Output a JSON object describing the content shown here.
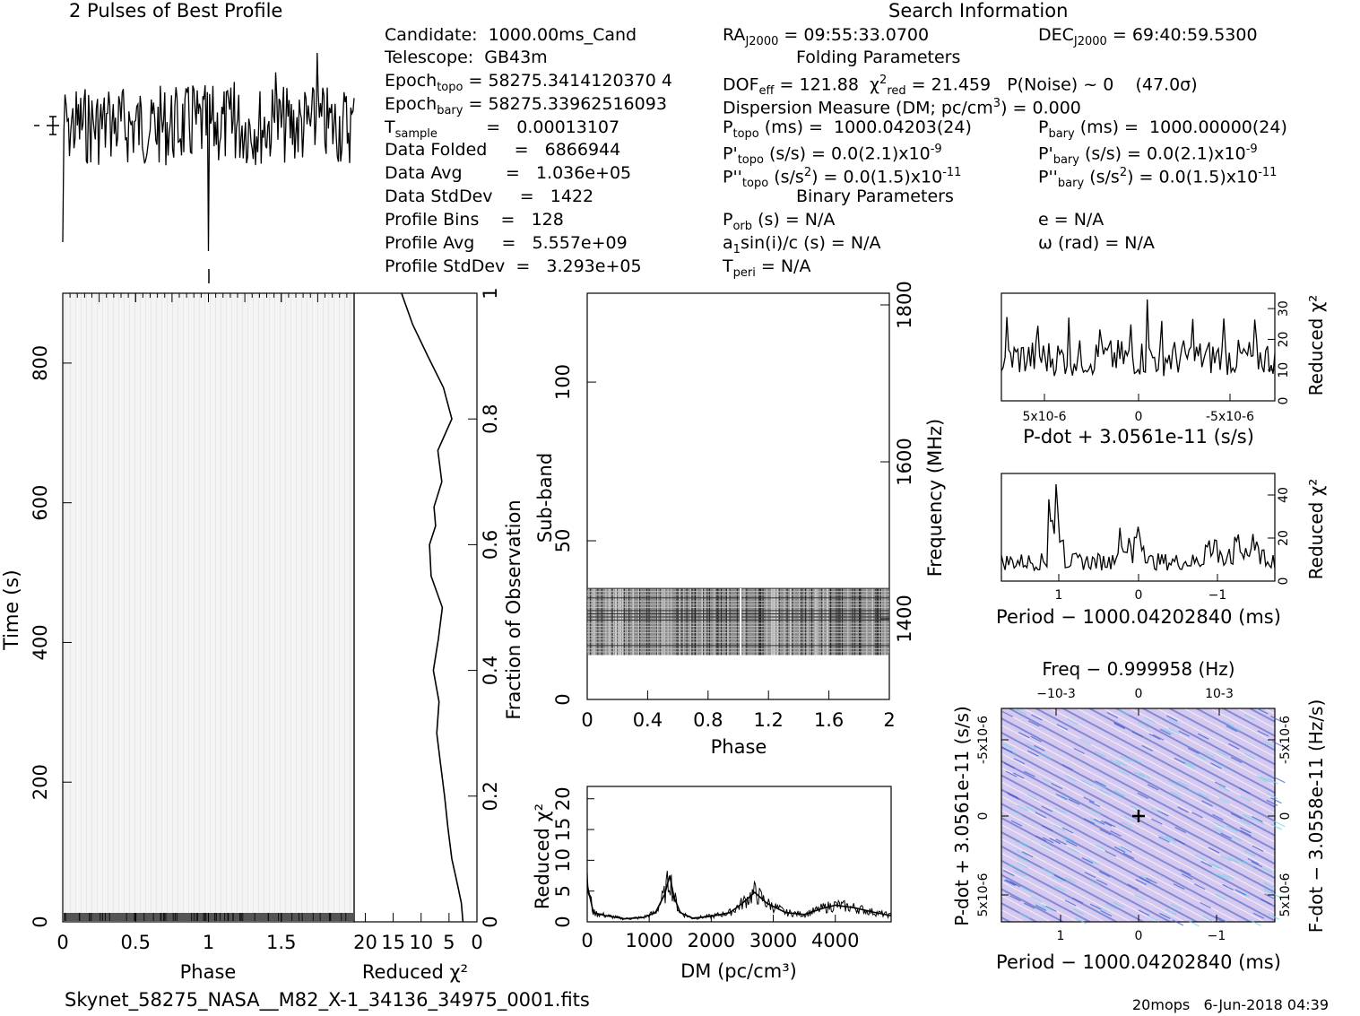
{
  "header": {
    "profile_title": "2 Pulses of Best Profile",
    "search_title": "Search Information"
  },
  "info": {
    "col1": [
      "Candidate:  1000.00ms_Cand",
      "Telescope:  GB43m",
      "Epoch_topo = 58275.3414120370 4",
      "Epoch_bary = 58275.33962516093",
      "T_sample        =   0.00013107",
      "Data Folded     =   6866944",
      "Data Avg        =   1.036e+05",
      "Data StdDev     =   1422",
      "Profile Bins    =   128",
      "Profile Avg     =   5.557e+09",
      "Profile StdDev  =   3.293e+05"
    ],
    "col2": [
      "RA_J2000 = 09:55:33.0700",
      "Folding Parameters",
      "DOF_eff = 121.88  χ2_red = 21.459   P(Noise) ~ 0    (47.0σ)",
      "Dispersion Measure (DM; pc/cm3) = 0.000",
      "P_topo (ms) =  1000.04203(24)",
      "P'_topo (s/s) = 0.0(2.1)x10-9",
      "P''_topo (s/s2) = 0.0(1.5)x10-11",
      "Binary Parameters",
      "P_orb (s) = N/A",
      "a1sin(i)/c (s) = N/A",
      "T_peri = N/A"
    ],
    "col3": [
      "DEC_J2000 = 69:40:59.5300",
      "P_bary (ms) =  1000.00000(24)",
      "P'_bary (s/s) = 0.0(2.1)x10-9",
      "P''_bary (s/s2) = 0.0(1.5)x10-11",
      "e = N/A",
      "ω (rad) = N/A"
    ]
  },
  "footer": {
    "filename": "Skynet_58275_NASA__M82_X-1_34136_34975_0001.fits",
    "stamp": "20mops   6-Jun-2018 04:39"
  },
  "colors": {
    "ink": "#000000",
    "grey_plot": "#f2f2f2",
    "pp_base": "#cfc2ec",
    "pp_blue": "#1f3fa8"
  },
  "chart_data": [
    {
      "type": "line",
      "title": "2 Pulses of Best Profile",
      "description_values": "noisy pulse profile over 2 cycles with narrow dips near phase 0, 1 and 2",
      "x": "phase 0-2",
      "xlim": [
        0,
        2
      ]
    },
    {
      "type": "heatmap",
      "name": "time-phase",
      "xlabel": "Phase",
      "ylabel": "Time (s)",
      "xticks": [
        "0",
        "0.5",
        "1",
        "1.5"
      ],
      "yticks": [
        "0",
        "200",
        "400",
        "600",
        "800"
      ],
      "xlim": [
        0,
        2
      ],
      "ylim": [
        0,
        900
      ]
    },
    {
      "type": "line",
      "name": "reduced-chi2-vs-fraction",
      "xlabel": "Reduced χ2",
      "ylabel": "Fraction of Observation",
      "xticks": [
        "20",
        "15",
        "10",
        "5",
        "0"
      ],
      "yticks": [
        "0",
        "0.2",
        "0.4",
        "0.6",
        "0.8",
        "1"
      ],
      "fraction": [
        0.0,
        0.03,
        0.06,
        0.1,
        0.15,
        0.2,
        0.25,
        0.3,
        0.35,
        0.4,
        0.45,
        0.5,
        0.55,
        0.6,
        0.63,
        0.66,
        0.7,
        0.75,
        0.8,
        0.85,
        0.9,
        0.95,
        1.0
      ],
      "chi2": [
        2.5,
        2.8,
        3.5,
        4.5,
        5.2,
        5.8,
        6.5,
        7.2,
        6.8,
        7.8,
        6.9,
        6.2,
        8.2,
        8.5,
        7.4,
        7.7,
        6.3,
        7.0,
        4.5,
        6.0,
        8.8,
        11.5,
        13.5
      ]
    },
    {
      "type": "heatmap",
      "name": "subband-phase",
      "xlabel": "Phase",
      "ylabel": "Sub-band",
      "right_label": "Frequency (MHz)",
      "xticks": [
        "0",
        "0.4",
        "0.8",
        "1.2",
        "1.6",
        "2"
      ],
      "yticks": [
        "0",
        "50",
        "100"
      ],
      "right_ticks": [
        "1400",
        "1600",
        "1800"
      ],
      "xlim": [
        0,
        2
      ],
      "ylim": [
        0,
        128
      ],
      "active_subbands": [
        14,
        35
      ]
    },
    {
      "type": "line",
      "name": "dm-chi2",
      "xlabel": "DM (pc/cm3)",
      "ylabel": "Reduced χ2",
      "xticks": [
        "0",
        "1000",
        "2000",
        "3000",
        "4000"
      ],
      "yticks": [
        "0",
        "5",
        "10",
        "15",
        "20"
      ],
      "xlim": [
        0,
        4900
      ],
      "ylim": [
        0,
        22
      ],
      "x": [
        0,
        100,
        300,
        600,
        900,
        1100,
        1250,
        1330,
        1400,
        1500,
        1700,
        2000,
        2300,
        2500,
        2700,
        2900,
        3200,
        3500,
        3800,
        4000,
        4300,
        4600,
        4900
      ],
      "y": [
        6,
        1.5,
        1.0,
        0.5,
        0.7,
        1.5,
        4.5,
        7.5,
        4.0,
        1.5,
        0.6,
        0.9,
        1.5,
        3.0,
        4.8,
        3.0,
        1.5,
        1.2,
        2.2,
        2.7,
        2.3,
        1.6,
        1.0
      ]
    },
    {
      "type": "line",
      "name": "pdot-chi2",
      "xlabel": "P-dot + 3.0561e-11 (s/s)",
      "ylabel": "Reduced χ2",
      "xticks": [
        "5x10-6",
        "0",
        "-5x10-6"
      ],
      "yticks": [
        "0",
        "10",
        "20",
        "30"
      ],
      "ylim": [
        0,
        35
      ]
    },
    {
      "type": "line",
      "name": "period-chi2",
      "xlabel": "Period − 1000.04202840 (ms)",
      "ylabel": "Reduced χ2",
      "xticks": [
        "1",
        "0",
        "−1"
      ],
      "yticks": [
        "0",
        "20",
        "40"
      ],
      "ylim": [
        0,
        50
      ]
    },
    {
      "type": "heatmap",
      "name": "p-pdot",
      "xlabel": "Period − 1000.04202840 (ms)",
      "ylabel": "P-dot + 3.0561e-11 (s/s)",
      "top_label": "Freq − 0.999958 (Hz)",
      "right_label": "F-dot − 3.0558e-11 (Hz/s)",
      "xticks": [
        "1",
        "0",
        "−1"
      ],
      "top_ticks": [
        "−10-3",
        "0",
        "10-3"
      ],
      "yticks": [
        "5x10-6",
        "0",
        "-5x10-6"
      ],
      "right_ticks": [
        "-5x10-6",
        "0",
        "5x10-6"
      ]
    }
  ]
}
